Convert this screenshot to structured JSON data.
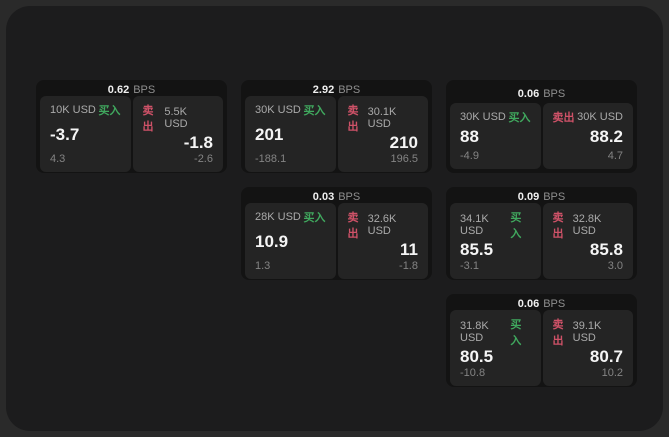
{
  "colors": {
    "buy_green": "#40a85e",
    "sell_red": "#cf5268",
    "window_bg": "#1c1c1d",
    "card_bg": "#131313",
    "panel_bg": "#242424"
  },
  "cards": [
    {
      "col": 1,
      "row": 1,
      "bps_value": "0.62",
      "bps_unit": "BPS",
      "buy": {
        "size": "10K USD",
        "side_label": "买入",
        "price": "-3.7",
        "delta": "4.3"
      },
      "sell": {
        "size": "5.5K USD",
        "side_label": "卖出",
        "price": "-1.8",
        "delta": "-2.6"
      }
    },
    {
      "col": 2,
      "row": 1,
      "bps_value": "2.92",
      "bps_unit": "BPS",
      "buy": {
        "size": "30K USD",
        "side_label": "买入",
        "price": "201",
        "delta": "-188.1"
      },
      "sell": {
        "size": "30.1K USD",
        "side_label": "卖出",
        "price": "210",
        "delta": "196.5"
      }
    },
    {
      "col": 3,
      "row": 1,
      "bps_value": "0.06",
      "bps_unit": "BPS",
      "buy": {
        "size": "30K USD",
        "side_label": "买入",
        "price": "88",
        "delta": "-4.9"
      },
      "sell": {
        "size": "30K USD",
        "side_label": "卖出",
        "price": "88.2",
        "delta": "4.7"
      }
    },
    {
      "col": 2,
      "row": 2,
      "bps_value": "0.03",
      "bps_unit": "BPS",
      "buy": {
        "size": "28K USD",
        "side_label": "买入",
        "price": "10.9",
        "delta": "1.3"
      },
      "sell": {
        "size": "32.6K USD",
        "side_label": "卖出",
        "price": "11",
        "delta": "-1.8"
      }
    },
    {
      "col": 3,
      "row": 2,
      "bps_value": "0.09",
      "bps_unit": "BPS",
      "buy": {
        "size": "34.1K USD",
        "side_label": "买入",
        "price": "85.5",
        "delta": "-3.1"
      },
      "sell": {
        "size": "32.8K USD",
        "side_label": "卖出",
        "price": "85.8",
        "delta": "3.0"
      }
    },
    {
      "col": 3,
      "row": 3,
      "bps_value": "0.06",
      "bps_unit": "BPS",
      "buy": {
        "size": "31.8K USD",
        "side_label": "买入",
        "price": "80.5",
        "delta": "-10.8"
      },
      "sell": {
        "size": "39.1K USD",
        "side_label": "卖出",
        "price": "80.7",
        "delta": "10.2"
      }
    }
  ]
}
